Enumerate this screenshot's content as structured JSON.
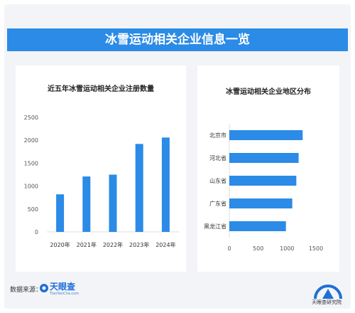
{
  "banner_title": "冰雪运动相关企业信息一览",
  "chart_data": [
    {
      "type": "bar",
      "title": "近五年冰雪运动相关企业注册数量",
      "categories": [
        "2020年",
        "2021年",
        "2022年",
        "2023年",
        "2024年"
      ],
      "values": [
        820,
        1210,
        1250,
        1920,
        2060
      ],
      "ylim": [
        0,
        2500
      ],
      "yticks": [
        0,
        500,
        1000,
        1500,
        2000,
        2500
      ],
      "xlabel": "",
      "ylabel": "",
      "grid": false,
      "bar_color": "#2b8be6"
    },
    {
      "type": "bar",
      "orientation": "horizontal",
      "title": "冰雪运动相关企业地区分布",
      "categories": [
        "北京市",
        "河北省",
        "山东省",
        "广东省",
        "黑龙江省"
      ],
      "values": [
        1270,
        1200,
        1160,
        1090,
        980
      ],
      "xlim": [
        0,
        1500
      ],
      "xticks": [
        0,
        500,
        1000,
        1500
      ],
      "xlabel": "",
      "ylabel": "",
      "grid": false,
      "bar_color": "#2b8be6"
    }
  ],
  "footer": {
    "source_label": "数据来源：",
    "brand_name": "天眼查",
    "brand_sub": "TianYanCha.com",
    "institute_name": "天眼查研究院"
  }
}
